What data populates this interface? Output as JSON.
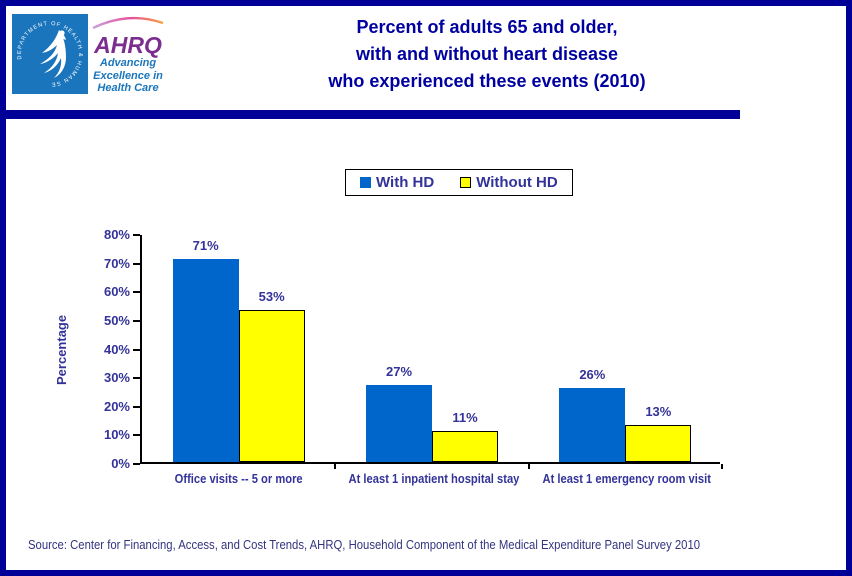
{
  "header": {
    "hhs_seal_text": "DEPARTMENT OF HEALTH & HUMAN SERVICES • USA",
    "ahrq_acronym": "AHRQ",
    "ahrq_tagline_lines": [
      "Advancing",
      "Excellence in",
      "Health Care"
    ]
  },
  "title_lines": [
    "Percent of adults 65 and older,",
    "with and without heart disease",
    "who experienced these events (2010)"
  ],
  "chart_data": {
    "type": "bar",
    "title": "Percent of adults 65 and older, with and without heart disease who experienced these events (2010)",
    "categories": [
      "Office visits -- 5 or more",
      "At least 1 inpatient hospital stay",
      "At least 1 emergency room visit"
    ],
    "series": [
      {
        "name": "With HD",
        "color": "#0066CC",
        "border": "none",
        "values": [
          71,
          27,
          26
        ]
      },
      {
        "name": "Without HD",
        "color": "#FFFF00",
        "border": "1px solid #000000",
        "values": [
          53,
          11,
          13
        ]
      }
    ],
    "xlabel": "",
    "ylabel": "Percentage",
    "ylim": [
      0,
      80
    ],
    "yticks": [
      "0%",
      "10%",
      "20%",
      "30%",
      "40%",
      "50%",
      "60%",
      "70%",
      "80%"
    ],
    "value_suffix": "%",
    "grid": false,
    "legend_position": "top-center"
  },
  "source": "Source: Center for Financing, Access, and Cost Trends, AHRQ, Household Component of the Medical Expenditure Panel Survey 2010",
  "colors": {
    "frame": "#000099",
    "title_text": "#0000A0",
    "chart_text": "#333399",
    "bar_blue": "#0066CC",
    "bar_yellow": "#FFFF00"
  }
}
